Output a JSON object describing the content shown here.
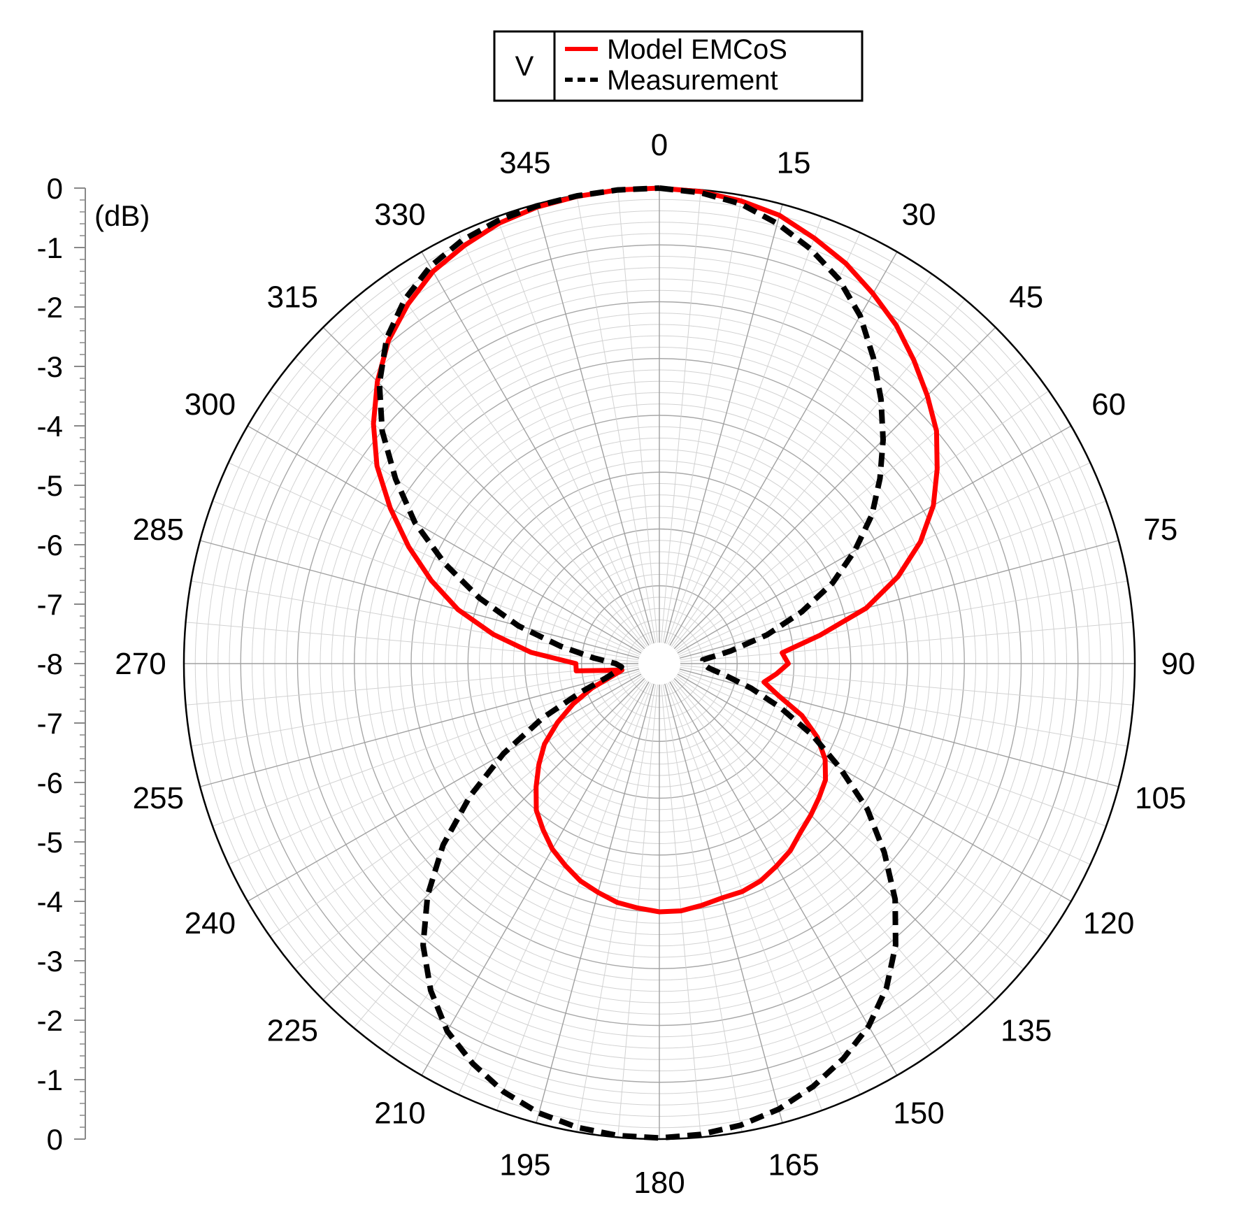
{
  "chart_data": {
    "type": "line",
    "subtype": "polar",
    "title": "",
    "polarization": "V",
    "radial_axis": {
      "unit": "(dB)",
      "min": -8,
      "max": 0,
      "major_step": 1,
      "minor_per_major": 5,
      "tick_labels_upper": [
        "0",
        "-1",
        "-2",
        "-3",
        "-4",
        "-5",
        "-6",
        "-7",
        "-8"
      ],
      "tick_labels_lower": [
        "-7",
        "-6",
        "-5",
        "-4",
        "-3",
        "-2",
        "-1",
        "0"
      ]
    },
    "angular_axis": {
      "unit": "deg",
      "zero_direction": "top",
      "direction": "clockwise",
      "major_step": 15,
      "labels": [
        "0",
        "15",
        "30",
        "45",
        "60",
        "75",
        "90",
        "105",
        "120",
        "135",
        "150",
        "165",
        "180",
        "195",
        "210",
        "225",
        "240",
        "255",
        "270",
        "285",
        "300",
        "315",
        "330",
        "345"
      ],
      "fine_grid_step": 5,
      "fine_ring_step": 0.2
    },
    "grid": true,
    "legend": {
      "position": "top-center",
      "box_label": "V"
    },
    "series": [
      {
        "name": "Model EMCoS",
        "color": "#ff0000",
        "line_style": "solid",
        "theta": [
          0,
          5,
          10,
          15,
          20,
          25,
          30,
          35,
          40,
          45,
          50,
          55,
          60,
          65,
          70,
          75,
          80,
          85,
          90,
          95,
          100,
          105,
          110,
          115,
          120,
          125,
          130,
          135,
          140,
          145,
          150,
          155,
          160,
          165,
          170,
          175,
          180,
          185,
          190,
          195,
          200,
          205,
          210,
          215,
          220,
          225,
          230,
          235,
          240,
          245,
          250,
          255,
          260,
          265,
          270,
          275,
          280,
          285,
          290,
          295,
          300,
          305,
          310,
          315,
          320,
          325,
          330,
          335,
          340,
          345,
          350,
          355,
          360
        ],
        "r": [
          0,
          -0.03,
          -0.1,
          -0.2,
          -0.4,
          -0.6,
          -0.85,
          -1.1,
          -1.4,
          -1.7,
          -2.0,
          -2.4,
          -2.8,
          -3.3,
          -3.9,
          -4.6,
          -5.5,
          -6.2,
          -6.1,
          -6.3,
          -6.5,
          -6.2,
          -5.7,
          -5.3,
          -5.0,
          -4.8,
          -4.7,
          -4.6,
          -4.5,
          -4.35,
          -4.25,
          -4.15,
          -4.1,
          -4.1,
          -4.05,
          -4.0,
          -4.0,
          -4.05,
          -4.1,
          -4.2,
          -4.3,
          -4.45,
          -4.6,
          -4.8,
          -5.0,
          -5.3,
          -5.6,
          -5.9,
          -6.3,
          -6.7,
          -7.1,
          -7.5,
          -7.7,
          -6.9,
          -6.9,
          -6.1,
          -5.4,
          -4.7,
          -4.1,
          -3.5,
          -2.9,
          -2.3,
          -1.8,
          -1.35,
          -0.95,
          -0.65,
          -0.4,
          -0.25,
          -0.12,
          -0.05,
          -0.02,
          0,
          0
        ]
      },
      {
        "name": "Measurement",
        "color": "#000000",
        "line_style": "dashed",
        "theta": [
          0,
          5,
          10,
          15,
          20,
          25,
          30,
          35,
          40,
          45,
          50,
          55,
          60,
          65,
          70,
          75,
          80,
          85,
          90,
          95,
          100,
          105,
          110,
          115,
          120,
          125,
          130,
          135,
          140,
          145,
          150,
          155,
          160,
          165,
          170,
          175,
          180,
          185,
          190,
          195,
          200,
          205,
          210,
          215,
          220,
          225,
          230,
          235,
          240,
          245,
          250,
          255,
          260,
          265,
          270,
          275,
          280,
          285,
          290,
          295,
          300,
          305,
          310,
          315,
          320,
          325,
          330,
          335,
          340,
          345,
          350,
          355,
          360
        ],
        "r": [
          0,
          -0.05,
          -0.15,
          -0.35,
          -0.6,
          -0.9,
          -1.3,
          -1.8,
          -2.3,
          -2.8,
          -3.3,
          -3.8,
          -4.4,
          -5.0,
          -5.7,
          -6.4,
          -7.1,
          -7.6,
          -7.6,
          -7.5,
          -7.2,
          -6.7,
          -6.1,
          -5.4,
          -4.7,
          -3.9,
          -3.2,
          -2.5,
          -1.9,
          -1.4,
          -1.0,
          -0.7,
          -0.45,
          -0.25,
          -0.12,
          -0.05,
          -0.02,
          -0.03,
          -0.08,
          -0.18,
          -0.35,
          -0.6,
          -0.9,
          -1.35,
          -1.9,
          -2.6,
          -3.4,
          -4.3,
          -5.2,
          -6.1,
          -6.9,
          -7.4,
          -7.6,
          -7.7,
          -7.6,
          -7.2,
          -6.6,
          -5.8,
          -5.0,
          -4.2,
          -3.4,
          -2.7,
          -2.0,
          -1.4,
          -0.9,
          -0.55,
          -0.3,
          -0.15,
          -0.07,
          -0.03,
          -0.01,
          0,
          0
        ]
      }
    ]
  }
}
